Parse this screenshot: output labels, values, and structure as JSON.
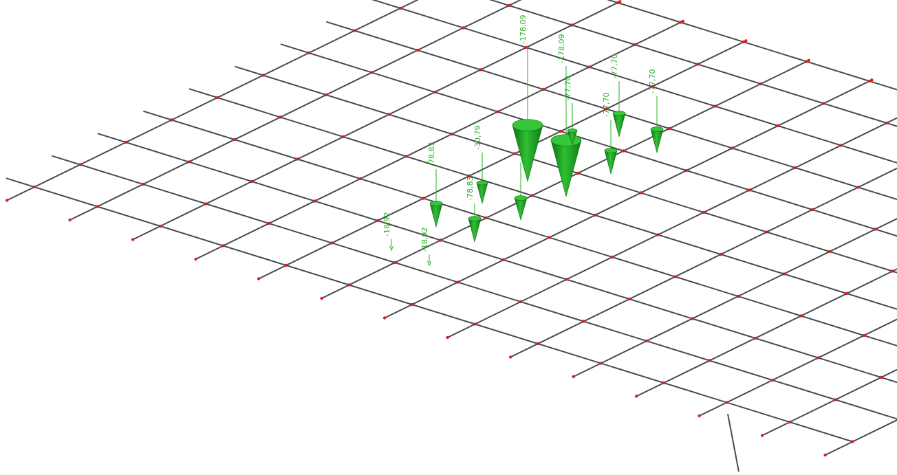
{
  "colors": {
    "background": "#ffffff",
    "member": "#4a4a4a",
    "node": "#e01b1b",
    "load": "#22b122",
    "load_dark": "#0f6f12",
    "load_label": "#22b122"
  },
  "grid": {
    "columns": 11,
    "rows": 10,
    "extended_lines_at_rows": [
      1,
      2,
      3,
      4,
      5,
      6,
      7,
      8,
      9,
      10
    ]
  },
  "loads": [
    {
      "id": "load-1",
      "label": "-178,09",
      "value": -178.09
    },
    {
      "id": "load-2",
      "label": "-178,09",
      "value": -178.09
    },
    {
      "id": "load-3",
      "label": "-77,70",
      "value": -77.7
    },
    {
      "id": "load-4",
      "label": "-77,70",
      "value": -77.7
    },
    {
      "id": "load-5",
      "label": "-77,70",
      "value": -77.7
    },
    {
      "id": "load-6",
      "label": "-77,70",
      "value": -77.7
    },
    {
      "id": "load-7",
      "label": "-78,83",
      "value": -78.83
    },
    {
      "id": "load-8",
      "label": "-78,83",
      "value": -78.83
    },
    {
      "id": "load-9",
      "label": "-30,79",
      "value": -30.79
    },
    {
      "id": "load-10",
      "label": "-18,92",
      "value": -18.92
    },
    {
      "id": "load-11",
      "label": "-18,92",
      "value": -18.92
    },
    {
      "id": "load-12",
      "label": "",
      "value": null
    }
  ]
}
